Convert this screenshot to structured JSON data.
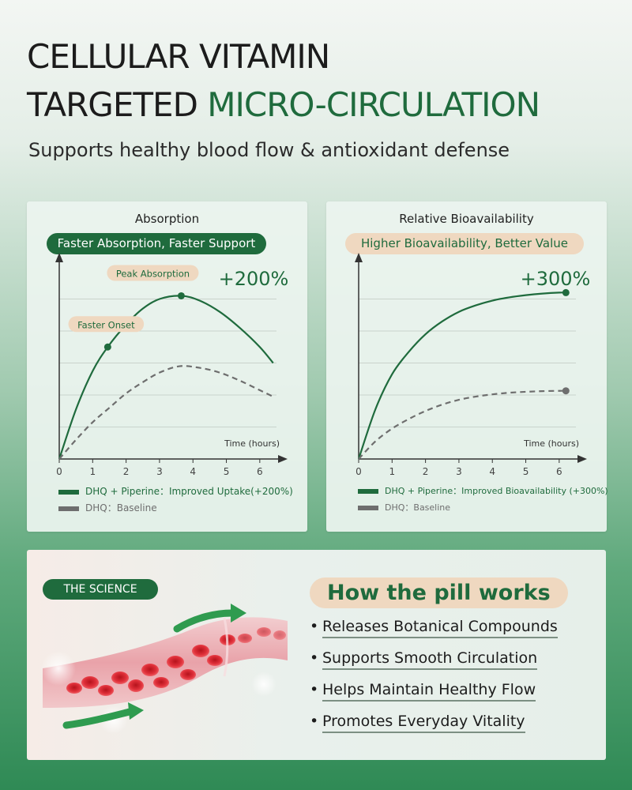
{
  "header": {
    "line1": "CELLULAR VITAMIN",
    "line2_prefix": "TARGETED",
    "line2_accent": "MICRO-CIRCULATION",
    "subtitle": "Supports healthy blood flow & antioxidant defense"
  },
  "colors": {
    "brand_green": "#1f6b3d",
    "tan": "#efd8c0",
    "baseline_gray": "#6e6e6e"
  },
  "chart_data": [
    {
      "type": "line",
      "title": "Absorption",
      "subtitle": "Faster Absorption, Faster Support",
      "xlabel": "Time (hours)",
      "ylabel": "",
      "x_ticks": [
        "0",
        "1",
        "2",
        "3",
        "4",
        "5",
        "6"
      ],
      "xlim": [
        0,
        6.5
      ],
      "ylim": [
        0,
        6
      ],
      "grid": true,
      "peak_label": "+200%",
      "series": [
        {
          "name": "DHQ + Piperine：Improved Uptake(+200%)",
          "style": "solid",
          "color": "#1f6b3d",
          "x": [
            0,
            0.5,
            1.0,
            1.45,
            2.0,
            2.5,
            3.0,
            3.65,
            4.2,
            4.8,
            5.4,
            6.0,
            6.4
          ],
          "y": [
            0,
            1.55,
            2.75,
            3.5,
            4.2,
            4.7,
            5.0,
            5.1,
            4.95,
            4.6,
            4.1,
            3.5,
            3.0
          ]
        },
        {
          "name": "DHQ：Baseline",
          "style": "dashed",
          "color": "#6e6e6e",
          "x": [
            0,
            0.5,
            1.0,
            1.5,
            2.0,
            2.5,
            3.0,
            3.6,
            4.2,
            4.8,
            5.4,
            6.0,
            6.4
          ],
          "y": [
            0,
            0.6,
            1.15,
            1.6,
            2.05,
            2.4,
            2.7,
            2.9,
            2.85,
            2.7,
            2.45,
            2.15,
            1.95
          ]
        }
      ],
      "annotations": [
        {
          "text": "Faster Onset",
          "x": 1.45,
          "y": 3.5
        },
        {
          "text": "Peak Absorption",
          "x": 3.65,
          "y": 5.1
        }
      ]
    },
    {
      "type": "line",
      "title": "Relative Bioavailability",
      "subtitle": "Higher Bioavailability, Better Value",
      "xlabel": "Time (hours)",
      "ylabel": "",
      "x_ticks": [
        "0",
        "1",
        "2",
        "3",
        "4",
        "5",
        "6"
      ],
      "xlim": [
        0,
        6.5
      ],
      "ylim": [
        0,
        6
      ],
      "grid": true,
      "peak_label": "+300%",
      "series": [
        {
          "name": "DHQ + Piperine：Improved Bioavailability (+300%)",
          "style": "solid",
          "color": "#1f6b3d",
          "x": [
            0,
            0.5,
            1.0,
            1.5,
            2.0,
            2.5,
            3.0,
            3.5,
            4.0,
            4.5,
            5.0,
            5.5,
            6.0,
            6.2
          ],
          "y": [
            0,
            1.55,
            2.65,
            3.35,
            3.9,
            4.3,
            4.6,
            4.8,
            4.95,
            5.05,
            5.12,
            5.17,
            5.2,
            5.2
          ]
        },
        {
          "name": "DHQ：Baseline",
          "style": "dashed",
          "color": "#6e6e6e",
          "x": [
            0,
            0.5,
            1.0,
            1.5,
            2.0,
            2.5,
            3.0,
            3.5,
            4.0,
            4.5,
            5.0,
            5.5,
            6.0,
            6.2
          ],
          "y": [
            0,
            0.55,
            0.95,
            1.25,
            1.5,
            1.7,
            1.85,
            1.95,
            2.02,
            2.07,
            2.1,
            2.12,
            2.13,
            2.13
          ]
        }
      ],
      "annotations": []
    }
  ],
  "science": {
    "badge": "THE SCIENCE",
    "heading": "How the pill works",
    "bullet_symbol": "•",
    "items": [
      "Releases Botanical Compounds",
      "Supports Smooth Circulation",
      "Helps Maintain Healthy Flow",
      "Promotes Everyday Vitality"
    ]
  }
}
